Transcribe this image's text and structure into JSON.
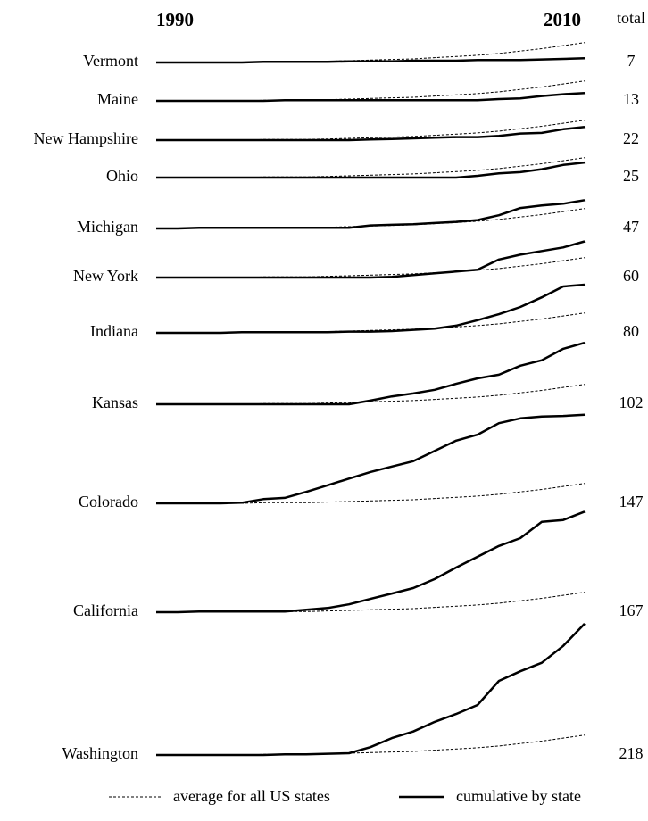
{
  "chart_data": {
    "type": "line",
    "x": [
      1990,
      1991,
      1992,
      1993,
      1994,
      1995,
      1996,
      1997,
      1998,
      1999,
      2000,
      2001,
      2002,
      2003,
      2004,
      2005,
      2006,
      2007,
      2008,
      2009,
      2010
    ],
    "totals_header": "total",
    "color": "#000000",
    "series": [
      {
        "name": "Vermont",
        "values": [
          0,
          0,
          0,
          0,
          0,
          1,
          1,
          1,
          1,
          2,
          2,
          2,
          3,
          3,
          3,
          4,
          4,
          4,
          5,
          6,
          7
        ]
      },
      {
        "name": "Maine",
        "values": [
          0,
          0,
          0,
          0,
          0,
          0,
          1,
          1,
          1,
          1,
          1,
          1,
          1,
          1,
          1,
          1,
          3,
          4,
          8,
          11,
          13
        ]
      },
      {
        "name": "New Hampshire",
        "values": [
          0,
          0,
          0,
          0,
          0,
          0,
          0,
          0,
          0,
          0,
          1,
          2,
          3,
          4,
          5,
          5,
          7,
          11,
          12,
          18,
          22
        ]
      },
      {
        "name": "Ohio",
        "values": [
          0,
          0,
          0,
          0,
          0,
          0,
          0,
          0,
          0,
          0,
          0,
          0,
          0,
          0,
          0,
          3,
          7,
          9,
          14,
          21,
          25
        ]
      },
      {
        "name": "Michigan",
        "values": [
          0,
          0,
          1,
          1,
          1,
          1,
          1,
          1,
          1,
          1,
          5,
          6,
          7,
          9,
          11,
          14,
          22,
          34,
          38,
          41,
          47
        ]
      },
      {
        "name": "New York",
        "values": [
          0,
          0,
          0,
          0,
          0,
          0,
          0,
          0,
          0,
          0,
          0,
          1,
          4,
          7,
          10,
          13,
          30,
          38,
          44,
          50,
          60
        ]
      },
      {
        "name": "Indiana",
        "values": [
          0,
          0,
          0,
          0,
          1,
          1,
          1,
          1,
          1,
          2,
          2,
          3,
          5,
          7,
          12,
          21,
          31,
          43,
          59,
          77,
          80
        ]
      },
      {
        "name": "Kansas",
        "values": [
          0,
          0,
          0,
          0,
          0,
          0,
          0,
          0,
          0,
          0,
          6,
          13,
          18,
          24,
          34,
          43,
          49,
          64,
          73,
          92,
          102
        ]
      },
      {
        "name": "Colorado",
        "values": [
          0,
          0,
          0,
          0,
          1,
          7,
          9,
          19,
          30,
          41,
          52,
          61,
          70,
          87,
          104,
          114,
          133,
          141,
          144,
          145,
          147
        ]
      },
      {
        "name": "California",
        "values": [
          0,
          0,
          1,
          1,
          1,
          1,
          1,
          4,
          7,
          13,
          22,
          31,
          40,
          55,
          74,
          92,
          110,
          123,
          150,
          153,
          167
        ]
      },
      {
        "name": "Washington",
        "values": [
          0,
          0,
          0,
          0,
          0,
          0,
          1,
          1,
          2,
          3,
          13,
          28,
          39,
          55,
          68,
          83,
          123,
          139,
          153,
          181,
          218
        ]
      }
    ],
    "average": {
      "name": "average for all US states",
      "values": [
        0,
        0,
        0,
        0,
        0,
        1,
        1,
        1,
        2,
        3,
        4,
        5,
        6,
        8,
        10,
        12,
        15,
        19,
        23,
        28,
        33
      ]
    },
    "state_legend": "cumulative by state"
  }
}
